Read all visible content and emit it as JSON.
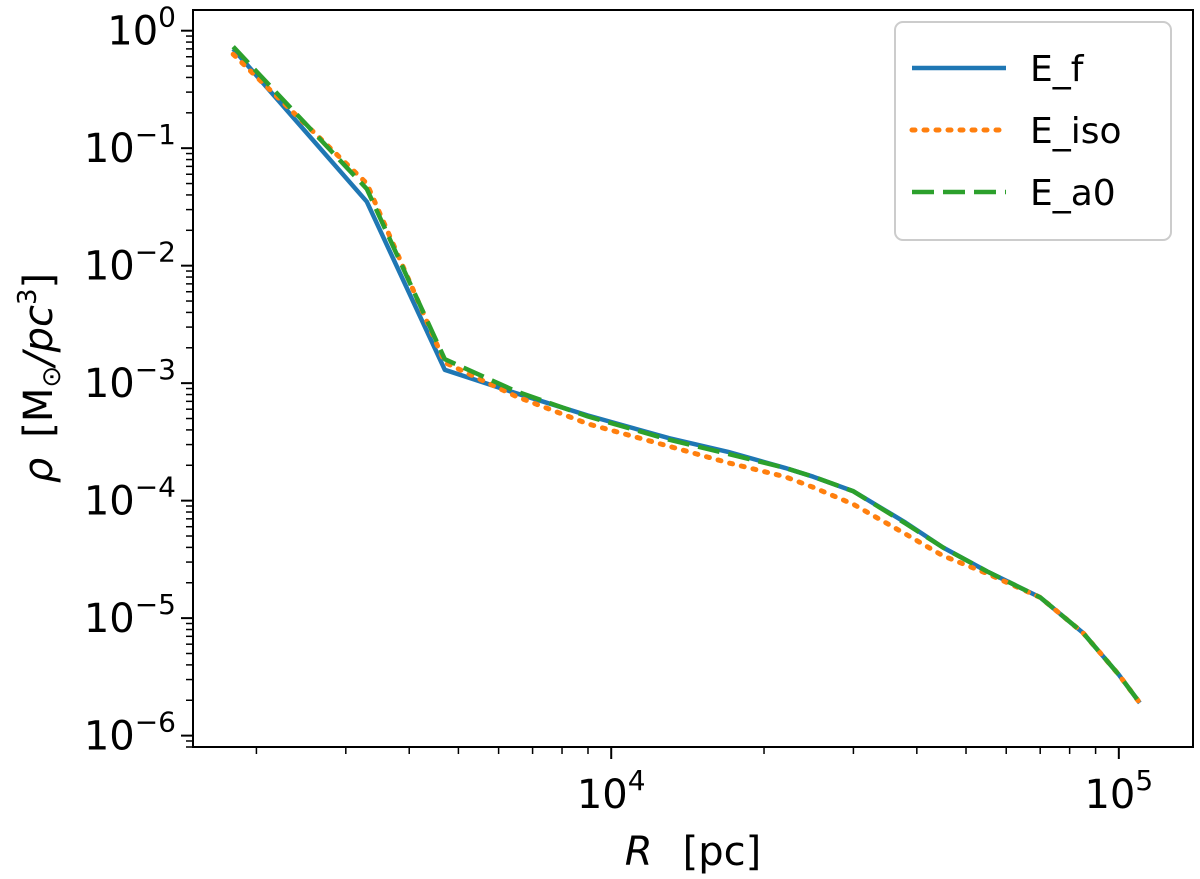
{
  "chart_data": {
    "type": "line",
    "xlabel": {
      "symbol": "R",
      "unit": "[pc]"
    },
    "ylabel": {
      "symbol": "ρ",
      "unit_open": "[M",
      "unit_sub": "⊙",
      "unit_mid": "/pc",
      "unit_sup": "3",
      "unit_close": "]"
    },
    "xscale": "log",
    "yscale": "log",
    "xlim": [
      1500,
      140000
    ],
    "ylim": [
      8e-07,
      1.5
    ],
    "grid": false,
    "legend_position": "top-right",
    "x_ticks": [
      {
        "value": 10000,
        "base": "10",
        "exp": "4"
      },
      {
        "value": 100000,
        "base": "10",
        "exp": "5"
      }
    ],
    "y_ticks": [
      {
        "value": 1,
        "base": "10",
        "exp": "0"
      },
      {
        "value": 0.1,
        "base": "10",
        "exp": "−1"
      },
      {
        "value": 0.01,
        "base": "10",
        "exp": "−2"
      },
      {
        "value": 0.001,
        "base": "10",
        "exp": "−3"
      },
      {
        "value": 0.0001,
        "base": "10",
        "exp": "−4"
      },
      {
        "value": 1e-05,
        "base": "10",
        "exp": "−5"
      },
      {
        "value": 1e-06,
        "base": "10",
        "exp": "−6"
      }
    ],
    "series": [
      {
        "name": "E_f",
        "color": "#1f77b4",
        "style": "solid",
        "x": [
          1800,
          3300,
          4700,
          6500,
          9000,
          13000,
          17000,
          22000,
          25000,
          30000,
          38000,
          45000,
          55000,
          70000,
          85000,
          100000,
          110000
        ],
        "y": [
          0.7,
          0.035,
          0.0013,
          0.00082,
          0.00053,
          0.00034,
          0.00026,
          0.00019,
          0.00016,
          0.00012,
          6.5e-05,
          4e-05,
          2.5e-05,
          1.5e-05,
          7.5e-06,
          3.3e-06,
          1.9e-06
        ]
      },
      {
        "name": "E_iso",
        "color": "#ff7f0e",
        "style": "dotted",
        "x": [
          1800,
          3300,
          4700,
          6500,
          9000,
          13000,
          17000,
          22000,
          25000,
          30000,
          38000,
          45000,
          55000,
          70000,
          85000,
          100000,
          110000
        ],
        "y": [
          0.63,
          0.05,
          0.0015,
          0.00077,
          0.00045,
          0.00029,
          0.00021,
          0.00016,
          0.00013,
          9.3e-05,
          5.2e-05,
          3.4e-05,
          2.4e-05,
          1.5e-05,
          7.5e-06,
          3.3e-06,
          1.9e-06
        ]
      },
      {
        "name": "E_a0",
        "color": "#2ca02c",
        "style": "dashed",
        "x": [
          1800,
          3300,
          4700,
          6500,
          9000,
          13000,
          17000,
          22000,
          25000,
          30000,
          38000,
          45000,
          55000,
          70000,
          85000,
          100000,
          110000
        ],
        "y": [
          0.73,
          0.045,
          0.0016,
          0.00085,
          0.00052,
          0.00033,
          0.00025,
          0.00019,
          0.00016,
          0.00012,
          6.4e-05,
          4e-05,
          2.5e-05,
          1.5e-05,
          7.5e-06,
          3.3e-06,
          1.9e-06
        ]
      }
    ]
  }
}
